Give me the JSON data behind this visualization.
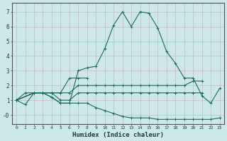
{
  "xlabel": "Humidex (Indice chaleur)",
  "background_color": "#cce8e8",
  "grid_color": "#b8d8d8",
  "line_color": "#1a6b5e",
  "xlim": [
    -0.5,
    23.5
  ],
  "ylim": [
    -0.6,
    7.6
  ],
  "xticks": [
    0,
    1,
    2,
    3,
    4,
    5,
    6,
    7,
    8,
    9,
    10,
    11,
    12,
    13,
    14,
    15,
    16,
    17,
    18,
    19,
    20,
    21,
    22,
    23
  ],
  "yticks": [
    0,
    1,
    2,
    3,
    4,
    5,
    6,
    7
  ],
  "ytick_labels": [
    "-0",
    "1",
    "2",
    "3",
    "4",
    "5",
    "6",
    "7"
  ],
  "series": [
    [
      1.0,
      0.7,
      1.5,
      1.5,
      1.2,
      0.8,
      0.8,
      3.0,
      3.2,
      3.3,
      4.5,
      6.1,
      7.0,
      6.0,
      7.0,
      6.9,
      5.9,
      4.3,
      3.5,
      2.5,
      2.5,
      1.3,
      0.8,
      1.8
    ],
    [
      1.0,
      1.5,
      1.5,
      1.5,
      1.5,
      1.5,
      2.5,
      2.5,
      2.5,
      null,
      null,
      null,
      null,
      null,
      null,
      null,
      null,
      null,
      null,
      null,
      null,
      null,
      null,
      null
    ],
    [
      1.0,
      null,
      1.5,
      1.5,
      1.5,
      1.5,
      1.5,
      2.0,
      2.0,
      2.0,
      2.0,
      2.0,
      2.0,
      2.0,
      2.0,
      2.0,
      2.0,
      2.0,
      2.0,
      2.0,
      2.3,
      2.3,
      null,
      null
    ],
    [
      1.0,
      null,
      1.5,
      1.5,
      1.5,
      1.0,
      1.0,
      1.5,
      1.5,
      1.5,
      1.5,
      1.5,
      1.5,
      1.5,
      1.5,
      1.5,
      1.5,
      1.5,
      1.5,
      1.5,
      1.5,
      1.5,
      null,
      null
    ],
    [
      1.0,
      null,
      1.5,
      1.5,
      1.2,
      0.8,
      0.8,
      0.8,
      0.8,
      0.5,
      0.3,
      0.1,
      -0.1,
      -0.2,
      -0.2,
      -0.2,
      -0.3,
      -0.3,
      -0.3,
      -0.3,
      -0.3,
      -0.3,
      -0.3,
      -0.2
    ]
  ]
}
